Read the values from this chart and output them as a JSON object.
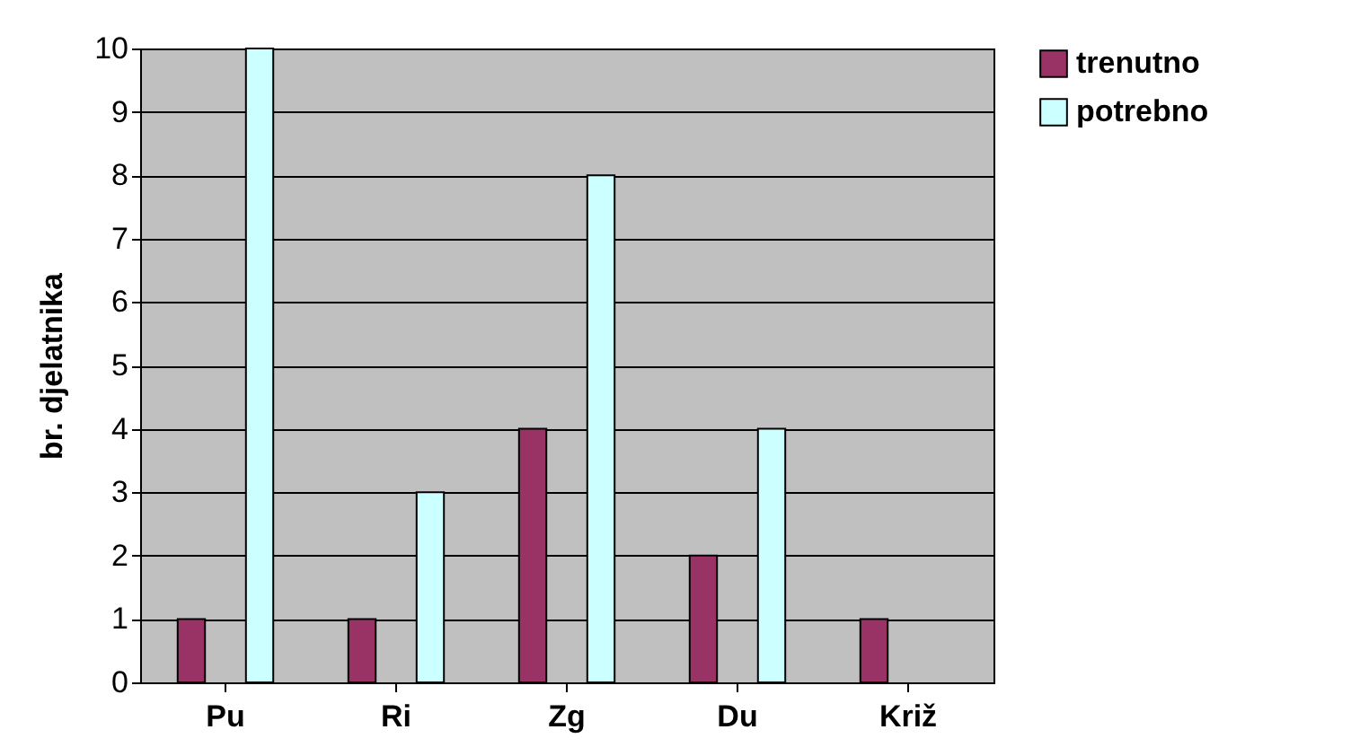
{
  "chart_data": {
    "type": "bar",
    "ylabel": "br. djelatnika",
    "categories": [
      "Pu",
      "Ri",
      "Zg",
      "Du",
      "Križ"
    ],
    "series": [
      {
        "name": "trenutno",
        "color": "#993366",
        "values": [
          1,
          1,
          4,
          2,
          1
        ]
      },
      {
        "name": "potrebno",
        "color": "#ccffff",
        "values": [
          10,
          3,
          8,
          4,
          0
        ]
      }
    ],
    "ylim": [
      0,
      10
    ],
    "yticks": [
      0,
      1,
      2,
      3,
      4,
      5,
      6,
      7,
      8,
      9,
      10
    ],
    "grid": "y",
    "legend": "right"
  }
}
